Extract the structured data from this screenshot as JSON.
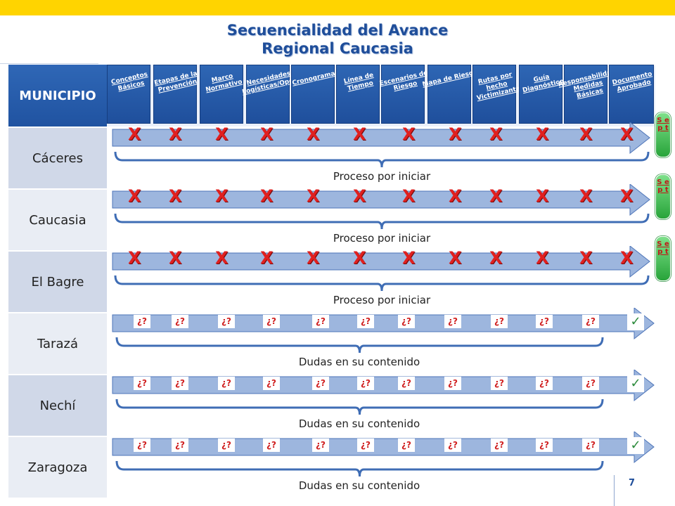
{
  "title": {
    "line1": "Secuencialidad del Avance",
    "line2": "Regional Caucasia"
  },
  "table_header": "MUNICIPIO",
  "columns": [
    "Conceptos Básicos",
    "Etapas de la Prevención",
    "Marco Normativo",
    "Necesidades Logísticas/Operativas",
    "Cronograma",
    "Línea de Tiempo",
    "Escenarios de Riesgo",
    "Mapa de Riesgo",
    "Rutas por hecho Victimizante",
    "Guía Diagnóstico",
    "Responsabilidades/capacidades Medidas Básicas",
    "Documento Aprobado"
  ],
  "rows": [
    {
      "municipio": "Cáceres",
      "status": "Proceso por iniciar",
      "mark": "X",
      "end_badge": "S e p t"
    },
    {
      "municipio": "Caucasia",
      "status": "Proceso por iniciar",
      "mark": "X",
      "end_badge": "S e p t"
    },
    {
      "municipio": "El Bagre",
      "status": "Proceso por iniciar",
      "mark": "X",
      "end_badge": "S e p t"
    },
    {
      "municipio": "Tarazá",
      "status": "Dudas en su contenido",
      "mark": "¿?",
      "end_check": "✓"
    },
    {
      "municipio": "Nechí",
      "status": "Dudas en su contenido",
      "mark": "¿?",
      "end_check": "✓"
    },
    {
      "municipio": "Zaragoza",
      "status": "Dudas en su contenido",
      "mark": "¿?",
      "end_check": "✓"
    }
  ],
  "page_number": "7",
  "colors": {
    "accent_bar": "#ffd400",
    "header_blue": "#2053a1",
    "mark_red": "#e0201f",
    "check_green": "#2a8a3a",
    "arrow_blue": "#9db6de"
  }
}
